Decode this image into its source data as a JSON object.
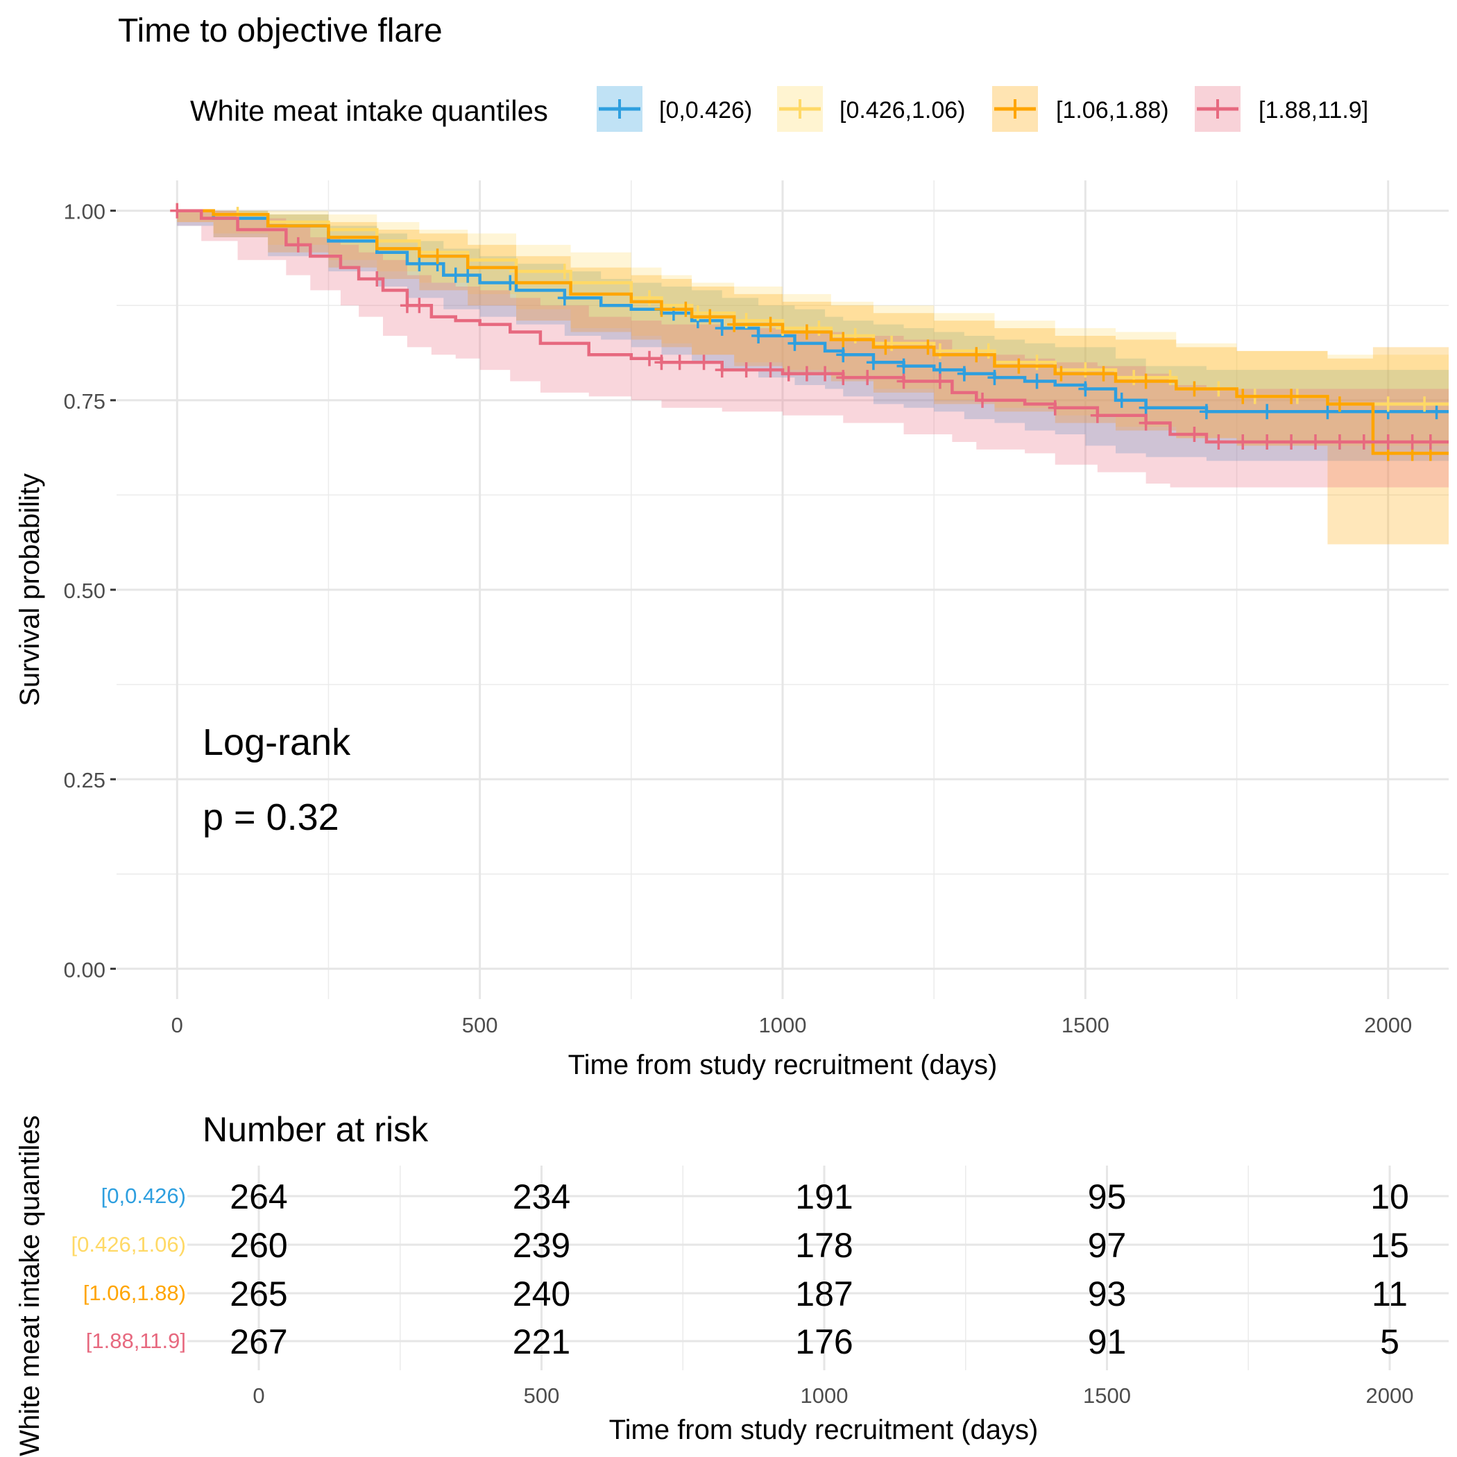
{
  "chart_data": [
    {
      "type": "line",
      "subtype": "kaplan-meier survival curves with 95% confidence bands and censor marks",
      "title": "Time to objective flare",
      "xlabel": "Time from study recruitment (days)",
      "ylabel": "Survival probability",
      "xlim": [
        -100,
        2100
      ],
      "ylim": [
        -0.04,
        1.04
      ],
      "x_ticks": [
        0,
        500,
        1000,
        1500,
        2000
      ],
      "x_tick_labels": [
        "0",
        "500",
        "1000",
        "1500",
        "2000"
      ],
      "y_ticks": [
        0,
        0.25,
        0.5,
        0.75,
        1.0
      ],
      "y_tick_labels": [
        "0.00",
        "0.25",
        "0.50",
        "0.75",
        "1.00"
      ],
      "grid": true,
      "legend": {
        "title": "White meat intake quantiles",
        "position": "top",
        "entries": [
          "[0,0.426)",
          "[0.426,1.06)",
          "[1.06,1.88)",
          "[1.88,11.9]"
        ]
      },
      "annotation": {
        "line1": "Log-rank",
        "line2": "p = 0.32"
      },
      "series": [
        {
          "name": "[0,0.426)",
          "color": "#2E9FDF",
          "x": [
            0,
            60,
            150,
            250,
            330,
            380,
            440,
            500,
            560,
            640,
            700,
            750,
            800,
            850,
            900,
            960,
            1020,
            1070,
            1100,
            1150,
            1200,
            1250,
            1300,
            1350,
            1400,
            1450,
            1500,
            1550,
            1600,
            1700,
            1900,
            2100
          ],
          "y": [
            1.0,
            0.99,
            0.98,
            0.96,
            0.945,
            0.93,
            0.915,
            0.905,
            0.895,
            0.885,
            0.875,
            0.87,
            0.865,
            0.855,
            0.845,
            0.835,
            0.825,
            0.815,
            0.81,
            0.8,
            0.795,
            0.79,
            0.785,
            0.78,
            0.775,
            0.77,
            0.765,
            0.75,
            0.74,
            0.735,
            0.735,
            0.735
          ],
          "lower": [
            1.0,
            0.98,
            0.965,
            0.94,
            0.92,
            0.9,
            0.885,
            0.87,
            0.86,
            0.85,
            0.835,
            0.83,
            0.82,
            0.81,
            0.8,
            0.79,
            0.78,
            0.77,
            0.765,
            0.755,
            0.745,
            0.74,
            0.735,
            0.725,
            0.72,
            0.71,
            0.705,
            0.69,
            0.68,
            0.675,
            0.67,
            0.67
          ],
          "upper": [
            1.0,
            1.0,
            0.995,
            0.98,
            0.97,
            0.96,
            0.95,
            0.94,
            0.93,
            0.92,
            0.91,
            0.905,
            0.9,
            0.895,
            0.885,
            0.875,
            0.87,
            0.86,
            0.855,
            0.85,
            0.845,
            0.84,
            0.835,
            0.83,
            0.825,
            0.82,
            0.82,
            0.805,
            0.795,
            0.79,
            0.79,
            0.79
          ],
          "censor_x": [
            400,
            430,
            460,
            480,
            550,
            640,
            820,
            860,
            900,
            960,
            1020,
            1100,
            1150,
            1200,
            1260,
            1300,
            1350,
            1420,
            1500,
            1560,
            1600,
            1700,
            1800,
            1900,
            2000,
            2080
          ]
        },
        {
          "name": "[0.426,1.06)",
          "color": "#FFD966",
          "x": [
            0,
            60,
            150,
            250,
            330,
            400,
            480,
            560,
            650,
            750,
            800,
            850,
            920,
            1000,
            1080,
            1150,
            1250,
            1350,
            1450,
            1550,
            1650,
            1750,
            1900,
            2100
          ],
          "y": [
            1.0,
            0.995,
            0.985,
            0.975,
            0.96,
            0.945,
            0.935,
            0.92,
            0.905,
            0.885,
            0.875,
            0.865,
            0.855,
            0.845,
            0.835,
            0.825,
            0.815,
            0.8,
            0.79,
            0.78,
            0.765,
            0.755,
            0.745,
            0.745
          ],
          "lower": [
            1.0,
            0.985,
            0.97,
            0.955,
            0.935,
            0.92,
            0.905,
            0.89,
            0.87,
            0.845,
            0.835,
            0.825,
            0.81,
            0.8,
            0.79,
            0.78,
            0.765,
            0.75,
            0.74,
            0.73,
            0.715,
            0.7,
            0.69,
            0.69
          ],
          "upper": [
            1.0,
            1.0,
            1.0,
            0.995,
            0.985,
            0.975,
            0.97,
            0.955,
            0.945,
            0.925,
            0.915,
            0.905,
            0.9,
            0.89,
            0.88,
            0.875,
            0.865,
            0.855,
            0.845,
            0.84,
            0.825,
            0.815,
            0.81,
            0.81
          ],
          "censor_x": [
            0,
            100,
            560,
            640,
            780,
            860,
            940,
            1000,
            1060,
            1120,
            1180,
            1260,
            1340,
            1420,
            1500,
            1580,
            1640,
            1720,
            1780,
            1850,
            1920,
            2000,
            2060
          ]
        },
        {
          "name": "[1.06,1.88)",
          "color": "#FFA500",
          "x": [
            0,
            60,
            150,
            250,
            330,
            400,
            480,
            560,
            650,
            750,
            800,
            850,
            920,
            1000,
            1080,
            1150,
            1250,
            1350,
            1450,
            1550,
            1650,
            1750,
            1900,
            1975,
            2100
          ],
          "y": [
            1.0,
            0.995,
            0.98,
            0.965,
            0.95,
            0.94,
            0.925,
            0.905,
            0.89,
            0.88,
            0.87,
            0.86,
            0.85,
            0.84,
            0.83,
            0.82,
            0.81,
            0.795,
            0.785,
            0.775,
            0.765,
            0.755,
            0.745,
            0.68,
            0.68
          ],
          "lower": [
            1.0,
            0.985,
            0.965,
            0.945,
            0.925,
            0.91,
            0.895,
            0.875,
            0.855,
            0.84,
            0.83,
            0.82,
            0.81,
            0.795,
            0.785,
            0.775,
            0.76,
            0.745,
            0.735,
            0.72,
            0.71,
            0.7,
            0.69,
            0.56,
            0.56
          ],
          "upper": [
            1.0,
            1.0,
            0.995,
            0.985,
            0.975,
            0.97,
            0.955,
            0.94,
            0.925,
            0.915,
            0.91,
            0.9,
            0.89,
            0.88,
            0.875,
            0.865,
            0.855,
            0.845,
            0.835,
            0.83,
            0.82,
            0.815,
            0.805,
            0.82,
            0.82
          ],
          "censor_x": [
            430,
            800,
            840,
            880,
            920,
            980,
            1040,
            1100,
            1170,
            1240,
            1320,
            1390,
            1460,
            1530,
            1600,
            1680,
            1760,
            1840,
            1920,
            2000,
            2040,
            2070
          ]
        },
        {
          "name": "[1.88,11.9]",
          "color": "#E7697F",
          "x": [
            0,
            40,
            100,
            180,
            220,
            270,
            300,
            340,
            380,
            420,
            460,
            500,
            550,
            600,
            680,
            750,
            800,
            900,
            1000,
            1100,
            1200,
            1280,
            1320,
            1400,
            1450,
            1520,
            1600,
            1640,
            1700,
            2100
          ],
          "y": [
            1.0,
            0.99,
            0.975,
            0.955,
            0.94,
            0.925,
            0.91,
            0.895,
            0.875,
            0.86,
            0.855,
            0.85,
            0.84,
            0.825,
            0.81,
            0.805,
            0.8,
            0.79,
            0.785,
            0.78,
            0.775,
            0.76,
            0.75,
            0.745,
            0.74,
            0.73,
            0.72,
            0.705,
            0.695,
            0.695
          ],
          "lower": [
            1.0,
            0.98,
            0.96,
            0.935,
            0.915,
            0.895,
            0.875,
            0.86,
            0.835,
            0.82,
            0.81,
            0.805,
            0.79,
            0.775,
            0.76,
            0.755,
            0.75,
            0.74,
            0.735,
            0.73,
            0.72,
            0.705,
            0.695,
            0.685,
            0.68,
            0.665,
            0.655,
            0.64,
            0.635,
            0.635
          ],
          "upper": [
            1.0,
            1.0,
            0.99,
            0.98,
            0.965,
            0.955,
            0.945,
            0.935,
            0.915,
            0.905,
            0.9,
            0.895,
            0.885,
            0.875,
            0.86,
            0.855,
            0.85,
            0.845,
            0.84,
            0.835,
            0.83,
            0.815,
            0.81,
            0.805,
            0.8,
            0.795,
            0.785,
            0.77,
            0.765,
            0.765
          ],
          "censor_x": [
            0,
            200,
            330,
            380,
            400,
            780,
            800,
            830,
            870,
            900,
            940,
            980,
            1010,
            1040,
            1070,
            1100,
            1140,
            1200,
            1260,
            1330,
            1450,
            1520,
            1600,
            1680,
            1720,
            1760,
            1800,
            1840,
            1880,
            1920,
            1960,
            2000,
            2040,
            2070
          ]
        }
      ]
    },
    {
      "type": "table",
      "title": "Number at risk",
      "ylabel": "White meat intake quantiles",
      "xlabel": "Time from study recruitment (days)",
      "x_ticks": [
        0,
        500,
        1000,
        1500,
        2000
      ],
      "x_tick_labels": [
        "0",
        "500",
        "1000",
        "1500",
        "2000"
      ],
      "rows": [
        {
          "name": "[0,0.426)",
          "color": "#2E9FDF",
          "values": [
            "264",
            "234",
            "191",
            "95",
            "10"
          ]
        },
        {
          "name": "[0.426,1.06)",
          "color": "#FFD966",
          "values": [
            "260",
            "239",
            "178",
            "97",
            "15"
          ]
        },
        {
          "name": "[1.06,1.88)",
          "color": "#FFA500",
          "values": [
            "265",
            "240",
            "187",
            "93",
            "11"
          ]
        },
        {
          "name": "[1.88,11.9]",
          "color": "#E7697F",
          "values": [
            "267",
            "221",
            "176",
            "91",
            "5"
          ]
        }
      ]
    }
  ]
}
